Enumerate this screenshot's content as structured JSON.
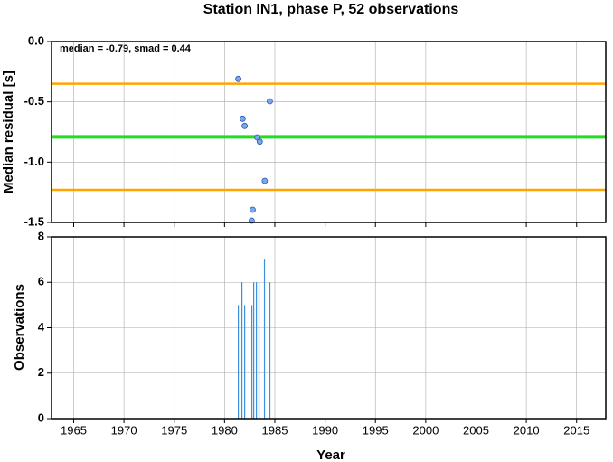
{
  "chart_data": [
    {
      "type": "scatter",
      "title": "Station IN1, phase P, 52 observations",
      "y_label": "Median residual [s]",
      "annotation": "median = -0.79, smad = 0.44",
      "x": [
        1981.37,
        1984.5,
        1981.8,
        1982.0,
        1983.25,
        1983.5,
        1984.0,
        1982.8,
        1982.7
      ],
      "values": [
        -0.31,
        -0.495,
        -0.64,
        -0.7,
        -0.795,
        -0.83,
        -1.155,
        -1.395,
        -1.485
      ],
      "color": "#7aa8f0",
      "hlines": [
        {
          "value": -0.35,
          "color": "#ffa500"
        },
        {
          "value": -0.79,
          "color": "#22dd22"
        },
        {
          "value": -1.23,
          "color": "#ffa500"
        }
      ],
      "xlim": [
        1962.8,
        2017.9
      ],
      "ylim": [
        -1.5,
        0
      ],
      "xticks": [
        1965,
        1970,
        1975,
        1980,
        1985,
        1990,
        1995,
        2000,
        2005,
        2010,
        2015
      ],
      "yticks": [
        {
          "value": 0,
          "label": "0.0"
        },
        -0.5,
        {
          "value": -1,
          "label": "-1.0"
        },
        -1.5
      ],
      "grid": true
    },
    {
      "type": "bar",
      "x_label": "Year",
      "y_label": "Observations",
      "x": [
        1981.37,
        1981.73,
        1982.0,
        1982.72,
        1982.9,
        1983.17,
        1983.43,
        1983.97,
        1984.51
      ],
      "values": [
        5,
        6,
        5,
        5,
        6,
        6,
        6,
        7,
        6
      ],
      "color": "#3c8ee0",
      "xlim": [
        1962.8,
        2017.9
      ],
      "ylim": [
        0,
        8
      ],
      "xticks": [
        1965,
        1970,
        1975,
        1980,
        1985,
        1990,
        1995,
        2000,
        2005,
        2010,
        2015
      ],
      "yticks": [
        0,
        2,
        4,
        6,
        8
      ],
      "grid": true
    }
  ]
}
